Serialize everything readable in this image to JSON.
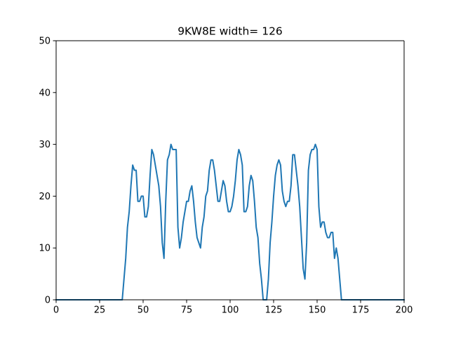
{
  "chart_data": {
    "type": "line",
    "title": "9KW8E width= 126",
    "xlabel": "",
    "ylabel": "",
    "xlim": [
      0,
      200
    ],
    "ylim": [
      0,
      50
    ],
    "xticks": [
      0,
      25,
      50,
      75,
      100,
      125,
      150,
      175,
      200
    ],
    "yticks": [
      0,
      10,
      20,
      30,
      40,
      50
    ],
    "grid": false,
    "line_color": "#1f77b4",
    "series": [
      {
        "x": [
          0,
          1,
          2,
          3,
          4,
          5,
          6,
          7,
          8,
          9,
          10,
          11,
          12,
          13,
          14,
          15,
          16,
          17,
          18,
          19,
          20,
          21,
          22,
          23,
          24,
          25,
          26,
          27,
          28,
          29,
          30,
          31,
          32,
          33,
          34,
          35,
          36,
          37,
          38,
          39,
          40,
          41,
          42,
          43,
          44,
          45,
          46,
          47,
          48,
          49,
          50,
          51,
          52,
          53,
          54,
          55,
          56,
          57,
          58,
          59,
          60,
          61,
          62,
          63,
          64,
          65,
          66,
          67,
          68,
          69,
          70,
          71,
          72,
          73,
          74,
          75,
          76,
          77,
          78,
          79,
          80,
          81,
          82,
          83,
          84,
          85,
          86,
          87,
          88,
          89,
          90,
          91,
          92,
          93,
          94,
          95,
          96,
          97,
          98,
          99,
          100,
          101,
          102,
          103,
          104,
          105,
          106,
          107,
          108,
          109,
          110,
          111,
          112,
          113,
          114,
          115,
          116,
          117,
          118,
          119,
          120,
          121,
          122,
          123,
          124,
          125,
          126,
          127,
          128,
          129,
          130,
          131,
          132,
          133,
          134,
          135,
          136,
          137,
          138,
          139,
          140,
          141,
          142,
          143,
          144,
          145,
          146,
          147,
          148,
          149,
          150,
          151,
          152,
          153,
          154,
          155,
          156,
          157,
          158,
          159,
          160,
          161,
          162,
          163,
          164,
          165,
          166,
          167,
          168,
          169,
          170,
          171,
          172,
          173,
          174,
          175,
          176,
          177,
          178,
          179,
          180,
          181,
          182,
          183,
          184,
          185,
          186,
          187,
          188,
          189,
          190,
          191,
          192,
          193,
          194,
          195,
          196,
          197,
          198,
          199,
          200
        ],
        "y": [
          0,
          0,
          0,
          0,
          0,
          0,
          0,
          0,
          0,
          0,
          0,
          0,
          0,
          0,
          0,
          0,
          0,
          0,
          0,
          0,
          0,
          0,
          0,
          0,
          0,
          0,
          0,
          0,
          0,
          0,
          0,
          0,
          0,
          0,
          0,
          0,
          0,
          0,
          0,
          4,
          8,
          14,
          17,
          22,
          26,
          25,
          25,
          19,
          19,
          20,
          20,
          16,
          16,
          18,
          24,
          29,
          28,
          26,
          24,
          22,
          18,
          11,
          8,
          19,
          27,
          28,
          30,
          29,
          29,
          29,
          14,
          10,
          12,
          15,
          17,
          19,
          19,
          21,
          22,
          19,
          15,
          12,
          11,
          10,
          14,
          16,
          20,
          21,
          25,
          27,
          27,
          25,
          22,
          19,
          19,
          21,
          23,
          22,
          19,
          17,
          17,
          18,
          20,
          23,
          27,
          29,
          28,
          26,
          17,
          17,
          18,
          22,
          24,
          23,
          19,
          14,
          12,
          7,
          4,
          0,
          0,
          0,
          4,
          11,
          15,
          20,
          24,
          26,
          27,
          26,
          21,
          19,
          18,
          19,
          19,
          22,
          28,
          28,
          25,
          22,
          18,
          12,
          6,
          4,
          11,
          25,
          28,
          29,
          29,
          30,
          29,
          18,
          14,
          15,
          15,
          13,
          12,
          12,
          13,
          13,
          8,
          10,
          8,
          4,
          0,
          0,
          0,
          0,
          0,
          0,
          0,
          0,
          0,
          0,
          0,
          0,
          0,
          0,
          0,
          0,
          0,
          0,
          0,
          0,
          0,
          0,
          0,
          0,
          0,
          0,
          0,
          0,
          0,
          0,
          0,
          0,
          0,
          0,
          0,
          0,
          0
        ]
      }
    ]
  }
}
